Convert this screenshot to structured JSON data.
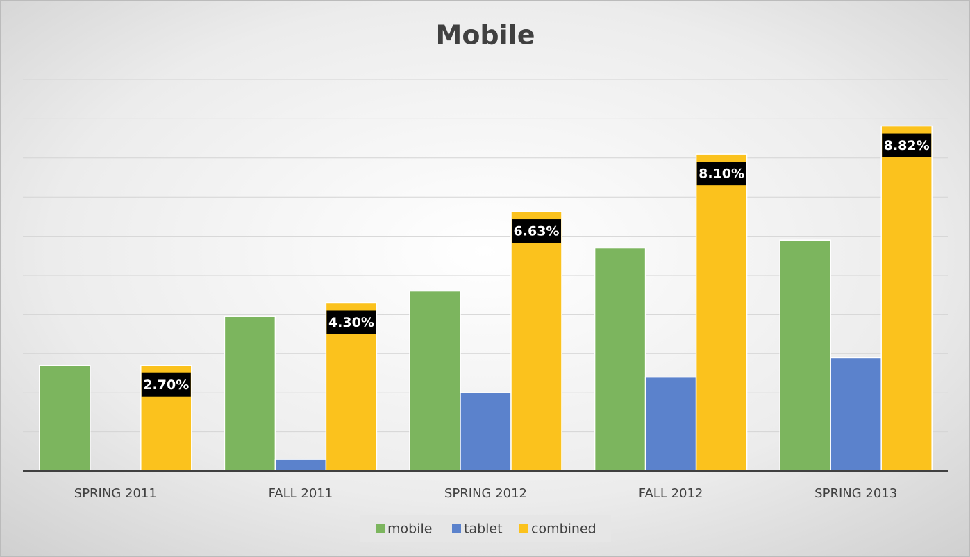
{
  "chart_data": {
    "type": "bar",
    "title": "Mobile",
    "categories": [
      "SPRING 2011",
      "FALL 2011",
      "SPRING 2012",
      "FALL 2012",
      "SPRING 2013"
    ],
    "series": [
      {
        "name": "mobile",
        "color": "#7cb55e",
        "values": [
          2.7,
          3.95,
          4.6,
          5.7,
          5.9
        ]
      },
      {
        "name": "tablet",
        "color": "#5b82cc",
        "values": [
          0,
          0.3,
          2.0,
          2.4,
          2.9
        ]
      },
      {
        "name": "combined",
        "color": "#fbc21d",
        "values": [
          2.7,
          4.3,
          6.63,
          8.1,
          8.82
        ],
        "value_labels": [
          "2.70%",
          "4.30%",
          "6.63%",
          "8.10%",
          "8.82%"
        ]
      }
    ],
    "ylim": [
      0,
      10
    ],
    "yticks": [
      0,
      1,
      2,
      3,
      4,
      5,
      6,
      7,
      8,
      9,
      10
    ],
    "grid": true,
    "legend": "bottom"
  }
}
